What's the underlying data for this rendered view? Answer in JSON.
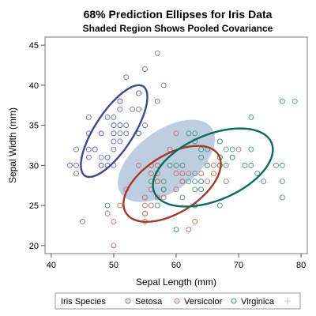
{
  "chart_data": {
    "type": "scatter",
    "title": "68% Prediction Ellipses for Iris Data",
    "subtitle": "Shaded Region Shows Pooled Covariance",
    "xlabel": "Sepal Length (mm)",
    "ylabel": "Sepal Width (mm)",
    "xlim": [
      39,
      81
    ],
    "ylim": [
      19,
      46
    ],
    "xticks": [
      40,
      50,
      60,
      70,
      80
    ],
    "yticks": [
      20,
      25,
      30,
      35,
      40,
      45
    ],
    "grid": false,
    "legend_title": "Iris Species",
    "legend_position": "bottom",
    "series": [
      {
        "name": "Setosa",
        "color": "#6b70b8",
        "ellipse_color": "#3d4a8c",
        "points": [
          [
            51,
            35
          ],
          [
            49,
            30
          ],
          [
            47,
            32
          ],
          [
            46,
            31
          ],
          [
            50,
            36
          ],
          [
            54,
            39
          ],
          [
            46,
            34
          ],
          [
            50,
            34
          ],
          [
            44,
            29
          ],
          [
            49,
            31
          ],
          [
            54,
            37
          ],
          [
            48,
            34
          ],
          [
            48,
            30
          ],
          [
            43,
            30
          ],
          [
            58,
            40
          ],
          [
            57,
            44
          ],
          [
            54,
            39
          ],
          [
            51,
            35
          ],
          [
            57,
            38
          ],
          [
            51,
            38
          ],
          [
            54,
            34
          ],
          [
            51,
            37
          ],
          [
            46,
            36
          ],
          [
            51,
            33
          ],
          [
            48,
            34
          ],
          [
            50,
            30
          ],
          [
            50,
            34
          ],
          [
            52,
            35
          ],
          [
            52,
            34
          ],
          [
            47,
            32
          ],
          [
            48,
            31
          ],
          [
            54,
            34
          ],
          [
            52,
            41
          ],
          [
            55,
            42
          ],
          [
            49,
            31
          ],
          [
            50,
            32
          ],
          [
            55,
            35
          ],
          [
            49,
            36
          ],
          [
            44,
            30
          ],
          [
            51,
            34
          ],
          [
            50,
            35
          ],
          [
            45,
            23
          ],
          [
            44,
            32
          ],
          [
            50,
            35
          ],
          [
            51,
            38
          ],
          [
            48,
            30
          ],
          [
            51,
            38
          ],
          [
            46,
            32
          ],
          [
            53,
            37
          ],
          [
            50,
            33
          ]
        ]
      },
      {
        "name": "Versicolor",
        "color": "#c07068",
        "ellipse_color": "#a33a2c",
        "points": [
          [
            70,
            32
          ],
          [
            64,
            32
          ],
          [
            69,
            31
          ],
          [
            55,
            23
          ],
          [
            65,
            28
          ],
          [
            57,
            28
          ],
          [
            63,
            33
          ],
          [
            49,
            24
          ],
          [
            66,
            29
          ],
          [
            52,
            27
          ],
          [
            50,
            20
          ],
          [
            59,
            30
          ],
          [
            60,
            22
          ],
          [
            61,
            29
          ],
          [
            56,
            29
          ],
          [
            67,
            31
          ],
          [
            56,
            30
          ],
          [
            58,
            27
          ],
          [
            62,
            22
          ],
          [
            56,
            25
          ],
          [
            59,
            32
          ],
          [
            61,
            28
          ],
          [
            63,
            25
          ],
          [
            61,
            28
          ],
          [
            64,
            29
          ],
          [
            66,
            30
          ],
          [
            68,
            28
          ],
          [
            67,
            30
          ],
          [
            60,
            29
          ],
          [
            57,
            26
          ],
          [
            55,
            24
          ],
          [
            55,
            24
          ],
          [
            58,
            27
          ],
          [
            60,
            27
          ],
          [
            54,
            30
          ],
          [
            60,
            34
          ],
          [
            67,
            31
          ],
          [
            63,
            23
          ],
          [
            56,
            30
          ],
          [
            55,
            25
          ],
          [
            55,
            26
          ],
          [
            61,
            30
          ],
          [
            58,
            26
          ],
          [
            50,
            23
          ],
          [
            56,
            27
          ],
          [
            57,
            30
          ],
          [
            57,
            29
          ],
          [
            62,
            29
          ],
          [
            51,
            25
          ],
          [
            57,
            28
          ]
        ]
      },
      {
        "name": "Virginica",
        "color": "#4a9a84",
        "ellipse_color": "#0b6a5c",
        "points": [
          [
            63,
            33
          ],
          [
            58,
            27
          ],
          [
            71,
            30
          ],
          [
            63,
            29
          ],
          [
            65,
            30
          ],
          [
            76,
            30
          ],
          [
            49,
            25
          ],
          [
            73,
            29
          ],
          [
            67,
            25
          ],
          [
            72,
            36
          ],
          [
            65,
            32
          ],
          [
            64,
            27
          ],
          [
            68,
            30
          ],
          [
            57,
            25
          ],
          [
            58,
            28
          ],
          [
            64,
            32
          ],
          [
            65,
            30
          ],
          [
            77,
            38
          ],
          [
            77,
            26
          ],
          [
            60,
            22
          ],
          [
            69,
            32
          ],
          [
            56,
            28
          ],
          [
            77,
            28
          ],
          [
            63,
            27
          ],
          [
            67,
            33
          ],
          [
            72,
            32
          ],
          [
            62,
            28
          ],
          [
            61,
            30
          ],
          [
            64,
            28
          ],
          [
            72,
            30
          ],
          [
            74,
            28
          ],
          [
            79,
            38
          ],
          [
            64,
            28
          ],
          [
            63,
            28
          ],
          [
            61,
            26
          ],
          [
            77,
            30
          ],
          [
            63,
            34
          ],
          [
            64,
            31
          ],
          [
            60,
            30
          ],
          [
            69,
            31
          ],
          [
            67,
            31
          ],
          [
            69,
            31
          ],
          [
            58,
            27
          ],
          [
            68,
            32
          ],
          [
            67,
            33
          ],
          [
            67,
            30
          ],
          [
            63,
            25
          ],
          [
            65,
            30
          ],
          [
            62,
            34
          ],
          [
            59,
            30
          ]
        ]
      }
    ],
    "ellipses": [
      {
        "series": "Setosa",
        "center": [
          50.06,
          34.28
        ],
        "cov": [
          [
            12.425,
            9.925
          ],
          [
            9.925,
            14.369
          ]
        ]
      },
      {
        "series": "Versicolor",
        "center": [
          59.36,
          27.7
        ],
        "cov": [
          [
            26.643,
            8.518
          ],
          [
            8.518,
            9.847
          ]
        ]
      },
      {
        "series": "Virginica",
        "center": [
          65.88,
          29.74
        ],
        "cov": [
          [
            40.434,
            9.376
          ],
          [
            9.376,
            10.4
          ]
        ]
      },
      {
        "series": "Pooled",
        "center": [
          58.43,
          30.57
        ],
        "cov": [
          [
            26.501,
            9.272
          ],
          [
            9.272,
            11.539
          ]
        ],
        "fill": "#b8c8de"
      }
    ]
  }
}
